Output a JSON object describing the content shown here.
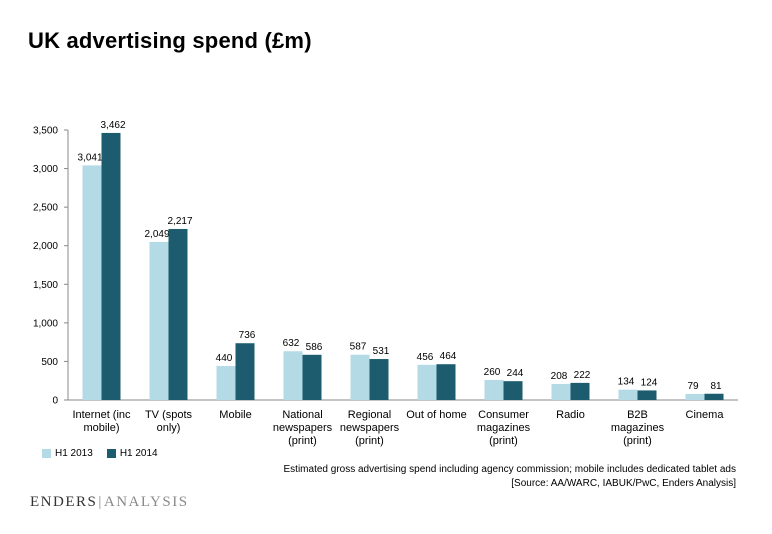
{
  "title": "UK advertising spend (£m)",
  "colors": {
    "h1_2013": "#b4dae6",
    "h1_2014": "#1d5c6e"
  },
  "chart_data": {
    "type": "bar",
    "title": "UK advertising spend (£m)",
    "xlabel": "",
    "ylabel": "",
    "ylim": [
      0,
      3500
    ],
    "yticks": [
      "0",
      "500",
      "1,000",
      "1,500",
      "2,000",
      "2,500",
      "3,000",
      "3,500"
    ],
    "ytick_values": [
      0,
      500,
      1000,
      1500,
      2000,
      2500,
      3000,
      3500
    ],
    "categories": [
      [
        "Internet (inc",
        "mobile)"
      ],
      [
        "TV (spots",
        "only)"
      ],
      [
        "Mobile"
      ],
      [
        "National",
        "newspapers",
        "(print)"
      ],
      [
        "Regional",
        "newspapers",
        "(print)"
      ],
      [
        "Out of home"
      ],
      [
        "Consumer",
        "magazines",
        "(print)"
      ],
      [
        "Radio"
      ],
      [
        "B2B",
        "magazines",
        "(print)"
      ],
      [
        "Cinema"
      ]
    ],
    "series": [
      {
        "name": "H1 2013",
        "values": [
          3041,
          2049,
          440,
          632,
          587,
          456,
          260,
          208,
          134,
          79
        ],
        "labels": [
          "3,041",
          "2,049",
          "440",
          "632",
          "587",
          "456",
          "260",
          "208",
          "134",
          "79"
        ]
      },
      {
        "name": "H1 2014",
        "values": [
          3462,
          2217,
          736,
          586,
          531,
          464,
          244,
          222,
          124,
          81
        ],
        "labels": [
          "3,462",
          "2,217",
          "736",
          "586",
          "531",
          "464",
          "244",
          "222",
          "124",
          "81"
        ]
      }
    ],
    "legend": "bottom-left",
    "grid": false
  },
  "legend": {
    "item1": "H1 2013",
    "item2": "H1 2014"
  },
  "footnote": {
    "line1": "Estimated gross advertising spend including agency commission; mobile includes dedicated tablet ads",
    "line2": "[Source: AA/WARC, IABUK/PwC, Enders Analysis]"
  },
  "brand": {
    "part1": "ENDERS",
    "sep": "|",
    "part2": "ANALYSIS"
  }
}
